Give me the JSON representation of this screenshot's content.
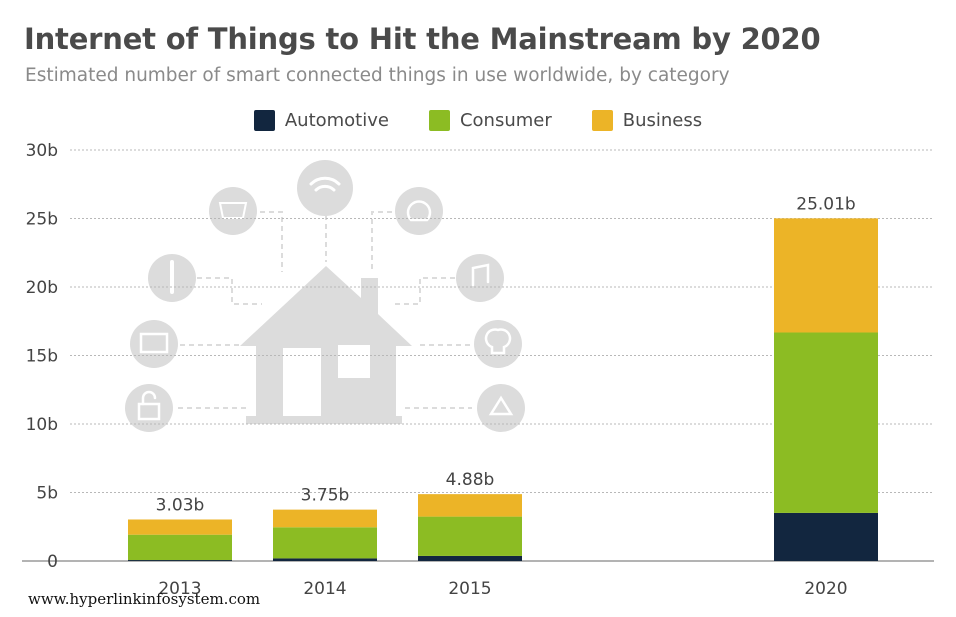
{
  "chart_data": {
    "type": "bar",
    "stacked": true,
    "title": "Internet of Things to Hit the Mainstream by 2020",
    "subtitle": "Estimated number of smart connected things in use worldwide, by category",
    "categories": [
      "2013",
      "2014",
      "2015",
      "2020"
    ],
    "series": [
      {
        "name": "Automotive",
        "color": "#12263f",
        "values": [
          0.07,
          0.19,
          0.37,
          3.51
        ]
      },
      {
        "name": "Consumer",
        "color": "#8cbc23",
        "values": [
          1.85,
          2.27,
          2.87,
          13.17
        ]
      },
      {
        "name": "Business",
        "color": "#ecb427",
        "values": [
          1.11,
          1.29,
          1.64,
          8.33
        ]
      }
    ],
    "totals": [
      "3.03b",
      "3.75b",
      "4.88b",
      "25.01b"
    ],
    "ylim": [
      0,
      30
    ],
    "yticks": [
      "0",
      "5b",
      "10b",
      "15b",
      "20b",
      "25b",
      "30b"
    ],
    "grid": true,
    "legend_position": "top"
  },
  "watermark": "www.hyperlinkinfosystem.com",
  "decorative": {
    "illustration": "smart-home-icon",
    "color": "#dcdcdc"
  }
}
